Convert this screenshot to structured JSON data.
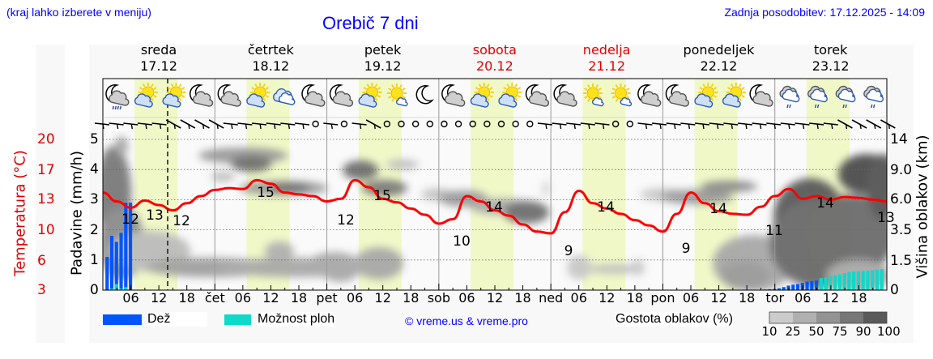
{
  "header": {
    "note": "(kraj lahko izberete v meniju)",
    "title": "Orebič 7 dni",
    "updated": "Zadnja posodobitev: 17.12.2025 - 14:09"
  },
  "days": [
    {
      "name": "sreda",
      "date": "17.12",
      "weekend": false
    },
    {
      "name": "četrtek",
      "date": "18.12",
      "weekend": false
    },
    {
      "name": "petek",
      "date": "19.12",
      "weekend": false
    },
    {
      "name": "sobota",
      "date": "20.12",
      "weekend": true
    },
    {
      "name": "nedelja",
      "date": "21.12",
      "weekend": true
    },
    {
      "name": "ponedeljek",
      "date": "22.12",
      "weekend": false
    },
    {
      "name": "torek",
      "date": "23.12",
      "weekend": false
    }
  ],
  "weather_icons": [
    "moon-cloud-rain-icon",
    "sun-cloud-icon",
    "sun-cloud-icon",
    "moon-cloud-icon",
    "moon-cloud-icon",
    "sun-cloud-icon",
    "cloud-icon",
    "moon-cloud-icon",
    "moon-cloud-icon",
    "sun-cloud-icon",
    "sun-small-cloud-icon",
    "moon-icon",
    "moon-cloud-icon",
    "sun-cloud-icon",
    "sun-cloud-icon",
    "moon-cloud-icon",
    "moon-cloud-icon",
    "sun-small-cloud-icon",
    "sun-small-cloud-icon",
    "moon-cloud-icon",
    "moon-cloud-icon",
    "sun-cloud-icon",
    "sun-cloud-icon",
    "moon-cloud-icon",
    "cloud-drizzle-icon",
    "cloud-drizzle-icon",
    "cloud-drizzle-icon",
    "cloud-drizzle-icon"
  ],
  "axes": {
    "left_temp_label": "Temperatura (°C)",
    "left_temp_ticks": [
      "20",
      "17",
      "13",
      "10",
      "6",
      "3"
    ],
    "left_precip_label": "Padavine (mm/h)",
    "left_precip_ticks": [
      "5",
      "4",
      "3",
      "2",
      "1",
      "0"
    ],
    "right_label": "Višina oblakov (km)",
    "right_ticks": [
      "14",
      "9.0",
      "6.0",
      "3.5",
      "1.5",
      "0"
    ],
    "x_ticks": [
      "06",
      "12",
      "18",
      "čet",
      "06",
      "12",
      "18",
      "pet",
      "06",
      "12",
      "18",
      "sob",
      "06",
      "12",
      "18",
      "ned",
      "06",
      "12",
      "18",
      "pon",
      "06",
      "12",
      "18",
      "tor",
      "06",
      "12",
      "18"
    ]
  },
  "legend": {
    "rain": "Dež",
    "showers": "Možnost ploh",
    "credit": "© vreme.us & vreme.pro",
    "cloud_density": "Gostota oblakov (%)",
    "density_ticks": [
      "10",
      "25",
      "50",
      "75",
      "90",
      "100"
    ]
  },
  "colors": {
    "rain": "#0055ff",
    "showers": "#11d8c8",
    "temperature": "#ff0000",
    "daylight": "#f0f8c8",
    "title": "#0000ff",
    "weekend": "#e00000"
  },
  "chart_data": {
    "type": "line",
    "title": "Orebič 7 dni",
    "xlabel": "",
    "ylabel": "Temperatura (°C) / Padavine (mm/h)",
    "y2label": "Višina oblakov (km)",
    "x_range": [
      "17.12 00:00",
      "24.12 00:00"
    ],
    "ylim_precip": [
      0,
      5
    ],
    "ylim_temp": [
      3,
      20
    ],
    "grid": true,
    "series": [
      {
        "name": "Temperatura",
        "unit": "°C",
        "hours": [
          0,
          3,
          6,
          9,
          12,
          15,
          18,
          21,
          24,
          27,
          30,
          33,
          36,
          39,
          42,
          45,
          48,
          51,
          54,
          57,
          60,
          63,
          66,
          69,
          72,
          75,
          78,
          81,
          84,
          87,
          90,
          93,
          96,
          99,
          102,
          105,
          108,
          111,
          114,
          117,
          120,
          123,
          126,
          129,
          132,
          135,
          138,
          141,
          144,
          147,
          150,
          153,
          156,
          159,
          162,
          165,
          168
        ],
        "values": [
          14,
          13,
          12.3,
          13.1,
          12.6,
          12,
          12.8,
          13.6,
          14.3,
          14.5,
          14.4,
          15.4,
          15.0,
          14.0,
          13.8,
          13.6,
          13.0,
          13.3,
          15.4,
          14.6,
          13.3,
          12.9,
          12.2,
          11.5,
          10.5,
          11.0,
          13.6,
          13.0,
          12.0,
          11.4,
          10.4,
          9.6,
          9.4,
          11.8,
          14.2,
          12.8,
          12.2,
          11.6,
          10.9,
          10.3,
          9.6,
          11.6,
          14.0,
          12.8,
          11.9,
          11.6,
          11.5,
          12.4,
          13.6,
          14.4,
          13.3,
          13.6,
          13.2,
          13.5,
          13.4,
          13.2,
          13.0
        ],
        "labels": [
          {
            "hour": 7,
            "value": 12
          },
          {
            "hour": 12,
            "value": 13
          },
          {
            "hour": 16,
            "value": 12
          },
          {
            "hour": 37,
            "value": 15
          },
          {
            "hour": 61,
            "value": 12
          },
          {
            "hour": 60,
            "value": 15
          },
          {
            "hour": 72,
            "value": 10
          },
          {
            "hour": 85,
            "value": 14
          },
          {
            "hour": 93,
            "value": 9
          },
          {
            "hour": 108,
            "value": 14
          },
          {
            "hour": 117,
            "value": 9
          },
          {
            "hour": 132,
            "value": 14
          },
          {
            "hour": 142,
            "value": 11
          },
          {
            "hour": 150,
            "value": 14
          },
          {
            "hour": 166,
            "value": 13
          }
        ]
      },
      {
        "name": "Dež",
        "unit": "mm/h",
        "hours": [
          1,
          2,
          3,
          4,
          5,
          6,
          7
        ],
        "values": [
          1.1,
          1.8,
          1.6,
          1.9,
          2.9,
          2.9,
          0
        ]
      },
      {
        "name": "Možnost ploh",
        "unit": "mm/h",
        "hours": [
          2,
          3,
          4,
          5
        ],
        "values": [
          0.05,
          0.2,
          0.05,
          0.1
        ]
      },
      {
        "name": "Dež (torek)",
        "unit": "mm/h",
        "hours": [
          142,
          143,
          144,
          145,
          146,
          147,
          148,
          149,
          150,
          151,
          152,
          153,
          154,
          155
        ],
        "values": [
          0.02,
          0.03,
          0.04,
          0.06,
          0.1,
          0.15,
          0.18,
          0.2,
          0.24,
          0.28,
          0.3,
          0.32,
          0.36,
          0.4
        ]
      },
      {
        "name": "Možnost ploh (torek)",
        "unit": "mm/h",
        "hours": [
          154,
          155,
          156,
          157,
          158,
          159,
          160,
          161,
          162,
          163,
          164,
          165,
          166,
          167
        ],
        "values": [
          0.4,
          0.42,
          0.46,
          0.5,
          0.52,
          0.56,
          0.6,
          0.62,
          0.62,
          0.64,
          0.64,
          0.66,
          0.68,
          0.7
        ]
      }
    ]
  }
}
